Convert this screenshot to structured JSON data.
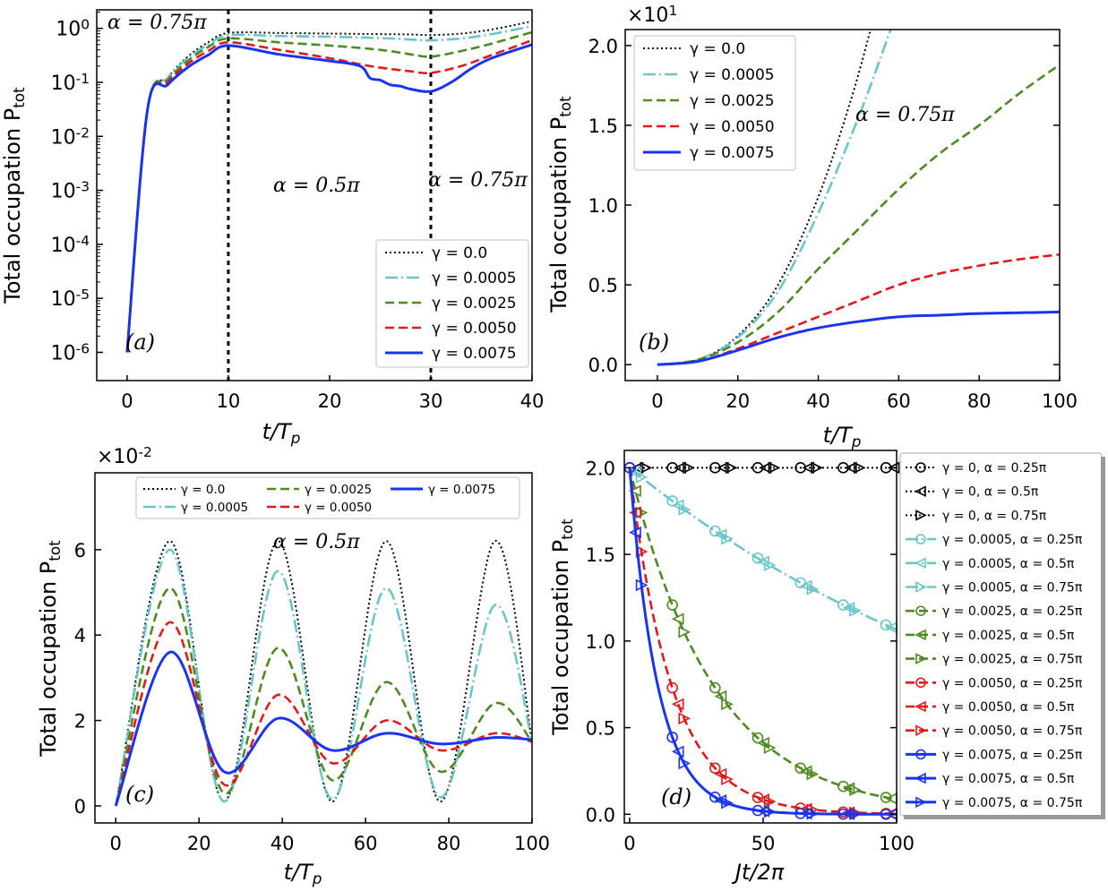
{
  "figure_label": "Four-panel figure of total occupation P_tot",
  "colors": {
    "g0": "#000000",
    "g1": "#6cc5c8",
    "g2": "#4e8a21",
    "g3": "#e01a1a",
    "g4": "#1a33ee"
  },
  "chart_data": [
    {
      "id": "a",
      "type": "line",
      "panel_label": "(a)",
      "xlabel": "t/T_p",
      "ylabel": "Total occupation P_tot",
      "yscale": "log",
      "xlim": [
        -3,
        40
      ],
      "ylim": [
        3e-07,
        2.2
      ],
      "xticks": [
        "0",
        "10",
        "20",
        "30",
        "40"
      ],
      "yticks": [
        "10^0",
        "10^-1",
        "10^-2",
        "10^-3",
        "10^-4",
        "10^-5",
        "10^-6"
      ],
      "vlines": [
        10,
        30
      ],
      "annotations": [
        "α = 0.75π",
        "α = 0.5π",
        "α = 0.75π"
      ],
      "legend_position": "lower-right",
      "series": [
        {
          "name": "γ = 0.0",
          "style": "dotted",
          "color": "#000000",
          "x": [
            0,
            2,
            4,
            6,
            8,
            10,
            15,
            20,
            25,
            28,
            30,
            33,
            36,
            40
          ],
          "y": [
            1e-06,
            0.03,
            0.12,
            0.3,
            0.55,
            0.82,
            0.82,
            0.8,
            0.78,
            0.77,
            0.75,
            0.8,
            0.95,
            1.35
          ]
        },
        {
          "name": "γ = 0.0005",
          "style": "dashdot",
          "color": "#6cc5c8",
          "x": [
            0,
            2,
            4,
            6,
            8,
            10,
            15,
            20,
            25,
            28,
            30,
            33,
            36,
            40
          ],
          "y": [
            1e-06,
            0.03,
            0.12,
            0.28,
            0.5,
            0.75,
            0.72,
            0.7,
            0.66,
            0.62,
            0.6,
            0.65,
            0.78,
            1.1
          ]
        },
        {
          "name": "γ = 0.0025",
          "style": "dashed",
          "color": "#4e8a21",
          "x": [
            0,
            2,
            4,
            6,
            8,
            10,
            15,
            20,
            25,
            28,
            30,
            33,
            36,
            40
          ],
          "y": [
            1e-06,
            0.03,
            0.11,
            0.25,
            0.45,
            0.65,
            0.55,
            0.48,
            0.4,
            0.33,
            0.3,
            0.38,
            0.52,
            0.85
          ]
        },
        {
          "name": "γ = 0.0050",
          "style": "dashed",
          "color": "#e01a1a",
          "x": [
            0,
            2,
            4,
            6,
            8,
            10,
            15,
            20,
            24,
            28,
            30,
            33,
            36,
            40
          ],
          "y": [
            1e-06,
            0.03,
            0.1,
            0.22,
            0.38,
            0.55,
            0.4,
            0.28,
            0.2,
            0.16,
            0.15,
            0.2,
            0.32,
            0.6
          ]
        },
        {
          "name": "γ = 0.0075",
          "style": "solid",
          "color": "#1a33ee",
          "x": [
            0,
            2,
            4,
            6,
            8,
            10,
            15,
            20,
            23,
            24,
            25,
            26,
            27,
            28,
            30,
            32,
            34,
            36,
            40
          ],
          "y": [
            1e-06,
            0.03,
            0.09,
            0.19,
            0.32,
            0.48,
            0.33,
            0.25,
            0.2,
            0.12,
            0.11,
            0.09,
            0.085,
            0.075,
            0.068,
            0.1,
            0.18,
            0.28,
            0.5
          ]
        }
      ]
    },
    {
      "id": "b",
      "type": "line",
      "panel_label": "(b)",
      "xlabel": "t/T_p",
      "ylabel": "Total occupation P_tot",
      "multiplier": "×10^1",
      "xlim": [
        -8,
        100
      ],
      "ylim": [
        -0.1,
        2.1
      ],
      "xticks": [
        0,
        20,
        40,
        60,
        80,
        100
      ],
      "yticks": [
        "0.0",
        "0.5",
        "1.0",
        "1.5",
        "2.0"
      ],
      "annotations": [
        "α = 0.75π"
      ],
      "legend_position": "upper-left",
      "series": [
        {
          "name": "γ = 0.0",
          "style": "dotted",
          "color": "#000000",
          "x": [
            0,
            10,
            20,
            30,
            40,
            48,
            53
          ],
          "y": [
            0,
            0.03,
            0.18,
            0.5,
            1.05,
            1.65,
            2.1
          ]
        },
        {
          "name": "γ = 0.0005",
          "style": "dashdot",
          "color": "#6cc5c8",
          "x": [
            0,
            10,
            20,
            30,
            40,
            50,
            58
          ],
          "y": [
            0,
            0.03,
            0.17,
            0.46,
            0.95,
            1.55,
            2.1
          ]
        },
        {
          "name": "γ = 0.0025",
          "style": "dashed",
          "color": "#4e8a21",
          "x": [
            0,
            10,
            20,
            30,
            40,
            50,
            60,
            70,
            80,
            90,
            100
          ],
          "y": [
            0,
            0.03,
            0.14,
            0.33,
            0.6,
            0.85,
            1.1,
            1.32,
            1.5,
            1.7,
            1.88
          ]
        },
        {
          "name": "γ = 0.0050",
          "style": "dashed",
          "color": "#e01a1a",
          "x": [
            0,
            10,
            20,
            30,
            40,
            50,
            60,
            70,
            80,
            90,
            100
          ],
          "y": [
            0,
            0.02,
            0.1,
            0.2,
            0.3,
            0.4,
            0.5,
            0.57,
            0.62,
            0.66,
            0.69
          ]
        },
        {
          "name": "γ = 0.0075",
          "style": "solid",
          "color": "#1a33ee",
          "x": [
            0,
            10,
            20,
            30,
            40,
            50,
            60,
            70,
            80,
            90,
            100
          ],
          "y": [
            0,
            0.02,
            0.09,
            0.17,
            0.23,
            0.27,
            0.3,
            0.31,
            0.32,
            0.325,
            0.33
          ]
        }
      ]
    },
    {
      "id": "c",
      "type": "line",
      "panel_label": "(c)",
      "xlabel": "t/T_p",
      "ylabel": "Total occupation P_tot",
      "multiplier": "×10^-2",
      "xlim": [
        -5,
        100
      ],
      "ylim": [
        -0.4,
        7.8
      ],
      "xticks": [
        0,
        20,
        40,
        60,
        80,
        100
      ],
      "yticks": [
        "0",
        "2",
        "4",
        "6"
      ],
      "annotations": [
        "α = 0.5π"
      ],
      "legend_position": "top",
      "series": [
        {
          "name": "γ = 0.0",
          "style": "dotted",
          "color": "#000000",
          "x": [
            0,
            13,
            26,
            39,
            52,
            65,
            78,
            91,
            100
          ],
          "y": [
            0,
            6.2,
            0.1,
            6.2,
            0.1,
            6.2,
            0.1,
            6.2,
            1.5
          ]
        },
        {
          "name": "γ = 0.0005",
          "style": "dashdot",
          "color": "#6cc5c8",
          "x": [
            0,
            13,
            26,
            39,
            52,
            65,
            78,
            91,
            100
          ],
          "y": [
            0,
            6.0,
            0.1,
            5.5,
            0.15,
            5.1,
            0.2,
            4.7,
            1.5
          ]
        },
        {
          "name": "γ = 0.0025",
          "style": "dashed",
          "color": "#4e8a21",
          "x": [
            0,
            13,
            26,
            39,
            52,
            65,
            78,
            91,
            100
          ],
          "y": [
            0,
            5.1,
            0.3,
            3.7,
            0.6,
            2.9,
            0.8,
            2.4,
            1.5
          ]
        },
        {
          "name": "γ = 0.0050",
          "style": "dashed",
          "color": "#e01a1a",
          "x": [
            0,
            13,
            26,
            39,
            52,
            65,
            78,
            91,
            100
          ],
          "y": [
            0,
            4.3,
            0.5,
            2.6,
            1.0,
            2.0,
            1.3,
            1.7,
            1.5
          ]
        },
        {
          "name": "γ = 0.0075",
          "style": "solid",
          "color": "#1a33ee",
          "x": [
            0,
            13,
            26,
            39,
            52,
            65,
            78,
            91,
            100
          ],
          "y": [
            0,
            3.6,
            0.8,
            2.05,
            1.3,
            1.7,
            1.45,
            1.6,
            1.55
          ]
        }
      ]
    },
    {
      "id": "d",
      "type": "line",
      "panel_label": "(d)",
      "xlabel": "Jt/2π",
      "ylabel": "Total occupation P_tot",
      "xlim": [
        -2,
        100
      ],
      "ylim": [
        -0.05,
        2.1
      ],
      "xticks": [
        0,
        50,
        100
      ],
      "yticks": [
        "0.0",
        "0.5",
        "1.0",
        "1.5",
        "2.0"
      ],
      "legend_position": "right-outside",
      "legend": [
        "γ = 0, α = 0.25π",
        "γ = 0, α = 0.5π",
        "γ = 0, α = 0.75π",
        "γ = 0.0005, α = 0.25π",
        "γ = 0.0005, α = 0.5π",
        "γ = 0.0005, α = 0.75π",
        "γ = 0.0025, α = 0.25π",
        "γ = 0.0025, α = 0.5π",
        "γ = 0.0025, α = 0.75π",
        "γ = 0.0050, α = 0.25π",
        "γ = 0.0050, α = 0.5π",
        "γ = 0.0050, α = 0.75π",
        "γ = 0.0075, α = 0.25π",
        "γ = 0.0075, α = 0.5π",
        "γ = 0.0075, α = 0.75π"
      ],
      "series": [
        {
          "gamma": "0",
          "style": "dotted",
          "color": "#000000",
          "decay": 0.0
        },
        {
          "gamma": "0.0005",
          "style": "dashdot",
          "color": "#6cc5c8",
          "decay": 0.0063
        },
        {
          "gamma": "0.0025",
          "style": "dashed",
          "color": "#4e8a21",
          "decay": 0.0315
        },
        {
          "gamma": "0.0050",
          "style": "dashed",
          "color": "#e01a1a",
          "decay": 0.063
        },
        {
          "gamma": "0.0075",
          "style": "solid",
          "color": "#1a33ee",
          "decay": 0.094
        }
      ],
      "marker_x": [
        0,
        16,
        32,
        48,
        64,
        80,
        96
      ]
    }
  ]
}
